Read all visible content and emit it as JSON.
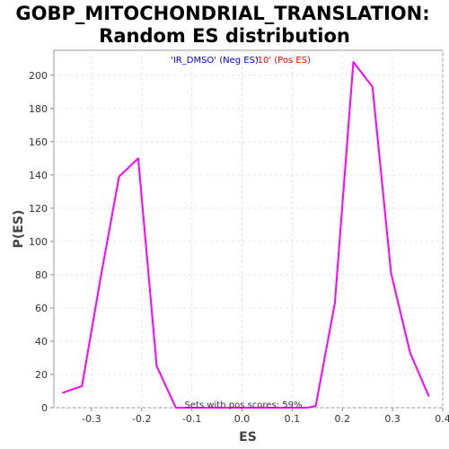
{
  "chart_data": {
    "type": "line",
    "title_line1": "GOBP_MITOCHONDRIAL_TRANSLATION:",
    "title_line2": "Random ES distribution",
    "xlabel": "ES",
    "ylabel": "P(ES)",
    "xlim": [
      -0.375,
      0.4
    ],
    "ylim": [
      0,
      215
    ],
    "xticks": [
      -0.3,
      -0.2,
      -0.1,
      0.0,
      0.1,
      0.2,
      0.3,
      0.4
    ],
    "xtick_labels": [
      "-0.3",
      "-0.2",
      "-0.1",
      "0.0",
      "0.1",
      "0.2",
      "0.3",
      "0.4"
    ],
    "yticks": [
      0,
      20,
      40,
      60,
      80,
      100,
      120,
      140,
      160,
      180,
      200
    ],
    "ytick_labels": [
      "0",
      "20",
      "40",
      "60",
      "80",
      "100",
      "120",
      "140",
      "160",
      "180",
      "200"
    ],
    "grid": true,
    "legend": {
      "placement": "top-center",
      "neg_text": "'IR_DMSO' (Neg ES)",
      "pos_text": "'10' (Pos ES)",
      "neg_color": "#0000ff",
      "pos_color": "#ff0000"
    },
    "annotation": "Sets with pos scores: 59%",
    "series": [
      {
        "color": "#ff00ff",
        "x": [
          -0.357,
          -0.319,
          -0.282,
          -0.245,
          -0.207,
          -0.17,
          -0.132,
          -0.095,
          -0.057,
          -0.02,
          0.018,
          0.055,
          0.093,
          0.13,
          0.147,
          0.185,
          0.222,
          0.26,
          0.297,
          0.335,
          0.372
        ],
        "y": [
          9,
          13,
          78,
          139,
          150,
          25,
          0,
          0,
          0,
          0,
          0,
          0,
          0,
          0,
          1,
          63,
          208,
          193,
          81,
          33,
          7
        ]
      }
    ]
  }
}
